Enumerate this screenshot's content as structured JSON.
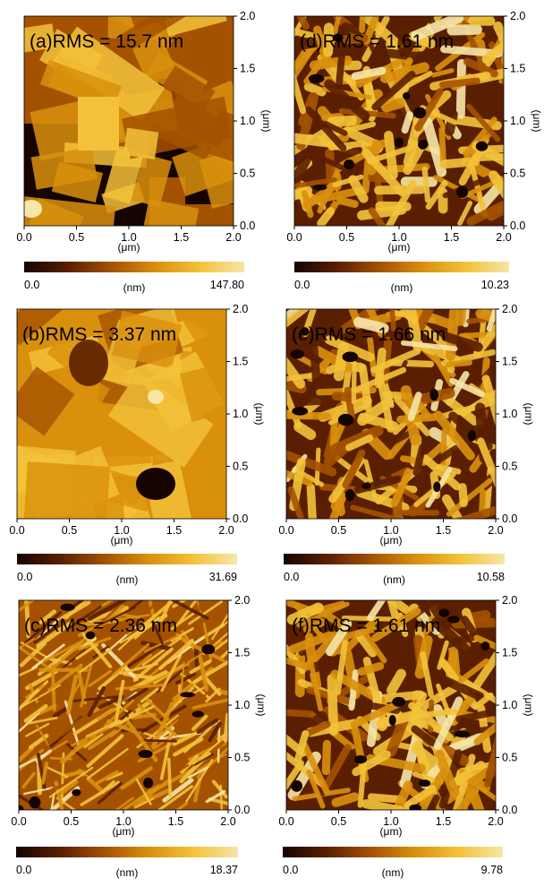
{
  "chart_data": [
    {
      "type": "heatmap",
      "panel": "a",
      "label": "(a)",
      "title": "RMS = 15.7 nm",
      "x_ticks": [
        "0.0",
        "0.5",
        "1.0",
        "1.5",
        "2.0"
      ],
      "y_ticks": [
        "0.0",
        "0.5",
        "1.0",
        "1.5",
        "2.0"
      ],
      "xlabel": "(μm)",
      "ylabel": "(μm)",
      "xlim": [
        0,
        2
      ],
      "ylim": [
        0,
        2
      ],
      "colorbar": {
        "label": "(nm)",
        "min": "0.0",
        "max": "147.80"
      },
      "morphology": "large-plates"
    },
    {
      "type": "heatmap",
      "panel": "d",
      "label": "(d)",
      "title": "RMS = 1.61 nm",
      "x_ticks": [
        "0.0",
        "0.5",
        "1.0",
        "1.5",
        "2.0"
      ],
      "y_ticks": [
        "0.0",
        "0.5",
        "1.0",
        "1.5",
        "2.0"
      ],
      "xlabel": "(μm)",
      "ylabel": "(μm)",
      "xlim": [
        0,
        2
      ],
      "ylim": [
        0,
        2
      ],
      "colorbar": {
        "label": "(nm)",
        "min": "0.0",
        "max": "10.23"
      },
      "morphology": "fibers"
    },
    {
      "type": "heatmap",
      "panel": "b",
      "label": "(b)",
      "title": "RMS = 3.37 nm",
      "x_ticks": [
        "0.0",
        "0.5",
        "1.0",
        "1.5",
        "2.0"
      ],
      "y_ticks": [
        "0.0",
        "0.5",
        "1.0",
        "1.5",
        "2.0"
      ],
      "xlabel": "(μm)",
      "ylabel": "(μm)",
      "xlim": [
        0,
        2
      ],
      "ylim": [
        0,
        2
      ],
      "colorbar": {
        "label": "(nm)",
        "min": "0.0",
        "max": "31.69"
      },
      "morphology": "terraces"
    },
    {
      "type": "heatmap",
      "panel": "e",
      "label": "(e)",
      "title": "RMS = 1.66 nm",
      "x_ticks": [
        "0.0",
        "0.5",
        "1.0",
        "1.5",
        "2.0"
      ],
      "y_ticks": [
        "0.0",
        "0.5",
        "1.0",
        "1.5",
        "2.0"
      ],
      "xlabel": "(μm)",
      "ylabel": "(μm)",
      "xlim": [
        0,
        2
      ],
      "ylim": [
        0,
        2
      ],
      "colorbar": {
        "label": "(nm)",
        "min": "0.0",
        "max": "10.58"
      },
      "morphology": "fibers"
    },
    {
      "type": "heatmap",
      "panel": "c",
      "label": "(c)",
      "title": "RMS = 2.36 nm",
      "x_ticks": [
        "0.0",
        "0.5",
        "1.0",
        "1.5",
        "2.0"
      ],
      "y_ticks": [
        "0.0",
        "0.5",
        "1.0",
        "1.5",
        "2.0"
      ],
      "xlabel": "(μm)",
      "ylabel": "(μm)",
      "xlim": [
        0,
        2
      ],
      "ylim": [
        0,
        2
      ],
      "colorbar": {
        "label": "(nm)",
        "min": "0.0",
        "max": "18.37"
      },
      "morphology": "needles"
    },
    {
      "type": "heatmap",
      "panel": "f",
      "label": "(f)",
      "title": "RMS = 1.61 nm",
      "x_ticks": [
        "0.0",
        "0.5",
        "1.0",
        "1.5",
        "2.0"
      ],
      "y_ticks": [
        "0.0",
        "0.5",
        "1.0",
        "1.5",
        "2.0"
      ],
      "xlabel": "(μm)",
      "ylabel": "(μm)",
      "xlim": [
        0,
        2
      ],
      "ylim": [
        0,
        2
      ],
      "colorbar": {
        "label": "(nm)",
        "min": "0.0",
        "max": "9.78"
      },
      "morphology": "fibers"
    }
  ],
  "colormap": [
    "#150400",
    "#5a1f00",
    "#a45200",
    "#d9900d",
    "#f3c23a",
    "#f6e6a8"
  ]
}
